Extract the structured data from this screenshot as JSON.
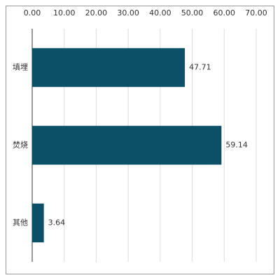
{
  "chart_data": {
    "type": "barh",
    "categories": [
      "填埋",
      "焚烧",
      "其他"
    ],
    "values": [
      47.71,
      59.14,
      3.64
    ],
    "color": "#0c5068",
    "xlim": [
      0,
      70
    ],
    "xticks": [
      {
        "value": 0,
        "label": "0.00"
      },
      {
        "value": 10,
        "label": "10.00"
      },
      {
        "value": 20,
        "label": "20.00"
      },
      {
        "value": 30,
        "label": "30.00"
      },
      {
        "value": 40,
        "label": "40.00"
      },
      {
        "value": 50,
        "label": "50.00"
      },
      {
        "value": 60,
        "label": "60.00"
      },
      {
        "value": 70,
        "label": "70.00"
      }
    ],
    "grid": true
  }
}
